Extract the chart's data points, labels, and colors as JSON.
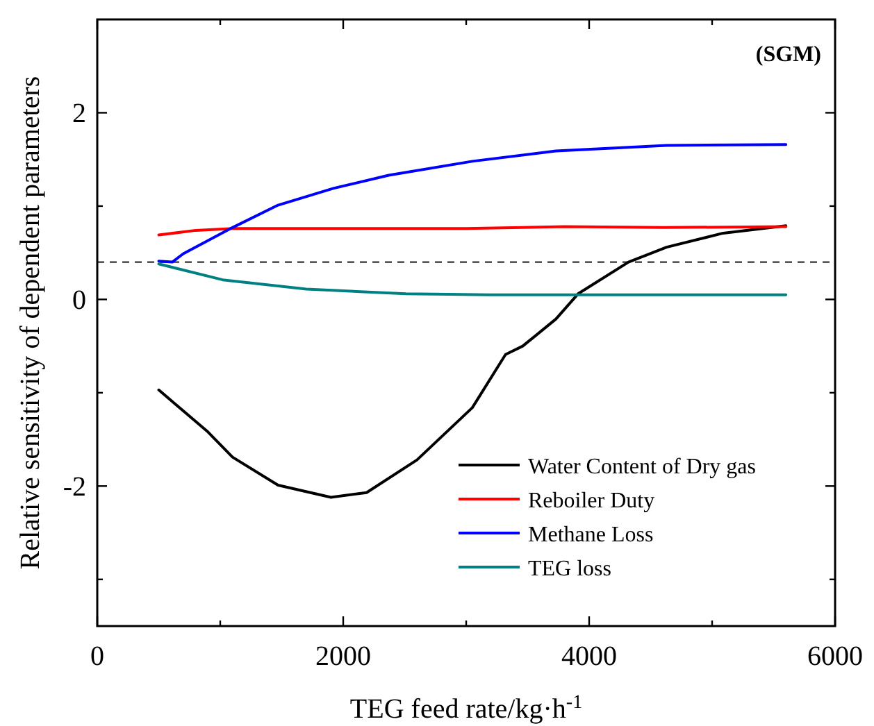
{
  "chart_data": {
    "type": "line",
    "xlabel": "TEG feed rate/kg·h$^{-1}$",
    "ylabel": "Relative sensitivity of dependent parameters",
    "annotations": [
      "(SGM)"
    ],
    "xlim": [
      0,
      6000
    ],
    "ylim": [
      -3.5,
      3
    ],
    "xticks": [
      0,
      {
        "value": 1000,
        "label": null
      },
      2000,
      {
        "value": 3000,
        "label": null
      },
      4000,
      {
        "value": 5000,
        "label": null
      },
      6000
    ],
    "yticks": [
      {
        "value": -3,
        "label": null
      },
      -2,
      {
        "value": -1,
        "label": null
      },
      0,
      {
        "value": 1,
        "label": null
      },
      2
    ],
    "grid": false,
    "legend": "bottom right",
    "marker": "none",
    "line_style": "solid",
    "ref_lines": [
      {
        "axis": "y",
        "value": 0.4,
        "label": null,
        "color": "#333333",
        "line_style": "dashed"
      }
    ],
    "series": [
      {
        "name": "Water Content of Dry gas",
        "color": "#000000",
        "x": [
          500,
          900,
          1100,
          1470,
          1900,
          2190,
          2600,
          3050,
          3320,
          3460,
          3730,
          3910,
          4320,
          4630,
          5090,
          5600
        ],
        "values": [
          -0.97,
          -1.42,
          -1.69,
          -1.99,
          -2.12,
          -2.07,
          -1.72,
          -1.16,
          -0.59,
          -0.5,
          -0.21,
          0.06,
          0.4,
          0.56,
          0.71,
          0.79
        ]
      },
      {
        "name": "Reboiler Duty",
        "color": "#ff0000",
        "x": [
          500,
          800,
          1100,
          2000,
          3000,
          3800,
          4600,
          5600
        ],
        "values": [
          0.69,
          0.74,
          0.76,
          0.76,
          0.76,
          0.78,
          0.77,
          0.78
        ]
      },
      {
        "name": "Methane Loss",
        "color": "#0000ff",
        "x": [
          500,
          610,
          700,
          1100,
          1470,
          1920,
          2370,
          3050,
          3730,
          4630,
          5600
        ],
        "values": [
          0.41,
          0.4,
          0.49,
          0.77,
          1.01,
          1.19,
          1.33,
          1.48,
          1.59,
          1.65,
          1.66
        ]
      },
      {
        "name": "TEG loss",
        "color": "#008080",
        "x": [
          500,
          1020,
          1700,
          2510,
          3190,
          4500,
          5600
        ],
        "values": [
          0.38,
          0.21,
          0.11,
          0.06,
          0.05,
          0.05,
          0.05
        ]
      }
    ]
  }
}
